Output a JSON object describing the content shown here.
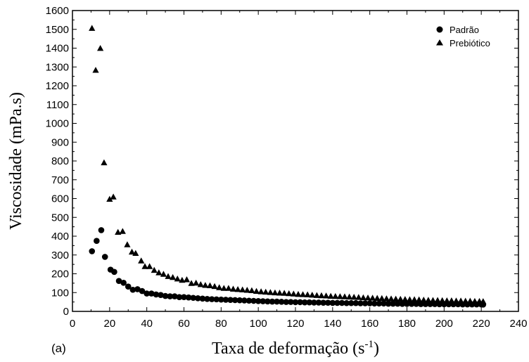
{
  "chart_data": {
    "type": "scatter",
    "panel_label": "(a)",
    "xlabel_main": "Taxa de deformação (s",
    "xlabel_sup": "-1",
    "xlabel_end": ")",
    "ylabel": "Viscosidade (mPa.s)",
    "xlim": [
      0,
      240
    ],
    "ylim": [
      0,
      1600
    ],
    "xticks": [
      "0",
      "20",
      "40",
      "60",
      "80",
      "100",
      "120",
      "140",
      "160",
      "180",
      "200",
      "220",
      "240"
    ],
    "yticks": [
      "0",
      "100",
      "200",
      "300",
      "400",
      "500",
      "600",
      "700",
      "800",
      "900",
      "1000",
      "1100",
      "1200",
      "1300",
      "1400",
      "1500",
      "1600"
    ],
    "grid": false,
    "legend_position": "top-right",
    "series": [
      {
        "name": "Padrão",
        "marker": "circle",
        "color": "#000000",
        "points": [
          [
            10.5,
            320
          ],
          [
            13,
            375
          ],
          [
            15.5,
            432
          ],
          [
            17.5,
            290
          ],
          [
            20.5,
            222
          ],
          [
            22.5,
            210
          ],
          [
            25,
            162
          ],
          [
            27.5,
            152
          ],
          [
            30,
            132
          ],
          [
            32.5,
            115
          ],
          [
            35,
            118
          ],
          [
            37.5,
            108
          ],
          [
            40,
            95
          ],
          [
            42.5,
            95
          ],
          [
            45,
            90
          ],
          [
            47.5,
            87
          ],
          [
            50,
            82
          ],
          [
            52.5,
            80
          ],
          [
            55,
            80
          ],
          [
            57.5,
            76
          ],
          [
            60,
            76
          ],
          [
            62.5,
            74
          ],
          [
            65,
            72
          ],
          [
            67.5,
            70
          ],
          [
            70,
            68
          ],
          [
            72.5,
            66
          ],
          [
            75,
            65
          ],
          [
            77.5,
            64
          ],
          [
            80,
            63
          ],
          [
            82.5,
            62
          ],
          [
            85,
            61
          ],
          [
            87.5,
            60
          ],
          [
            90,
            59
          ],
          [
            92.5,
            58
          ],
          [
            95,
            57
          ],
          [
            97.5,
            56
          ],
          [
            100,
            55
          ],
          [
            102.5,
            54
          ],
          [
            105,
            53
          ],
          [
            107.5,
            52
          ],
          [
            110,
            52
          ],
          [
            112.5,
            51
          ],
          [
            115,
            50
          ],
          [
            117.5,
            50
          ],
          [
            120,
            49
          ],
          [
            122.5,
            49
          ],
          [
            125,
            48
          ],
          [
            127.5,
            48
          ],
          [
            130,
            47
          ],
          [
            132.5,
            47
          ],
          [
            135,
            46
          ],
          [
            137.5,
            46
          ],
          [
            140,
            45
          ],
          [
            142.5,
            45
          ],
          [
            145,
            45
          ],
          [
            147.5,
            44
          ],
          [
            150,
            44
          ],
          [
            152.5,
            44
          ],
          [
            155,
            43
          ],
          [
            157.5,
            43
          ],
          [
            160,
            43
          ],
          [
            162.5,
            42
          ],
          [
            165,
            42
          ],
          [
            167.5,
            42
          ],
          [
            170,
            41
          ],
          [
            172.5,
            41
          ],
          [
            175,
            41
          ],
          [
            177.5,
            40
          ],
          [
            180,
            40
          ],
          [
            182.5,
            40
          ],
          [
            185,
            40
          ],
          [
            187.5,
            39
          ],
          [
            190,
            39
          ],
          [
            192.5,
            39
          ],
          [
            195,
            39
          ],
          [
            197.5,
            38
          ],
          [
            200,
            38
          ],
          [
            202.5,
            38
          ],
          [
            205,
            38
          ],
          [
            207.5,
            38
          ],
          [
            210,
            37
          ],
          [
            212.5,
            37
          ],
          [
            215,
            37
          ],
          [
            217.5,
            37
          ],
          [
            220,
            37
          ],
          [
            221,
            36
          ]
        ]
      },
      {
        "name": "Prebiótico",
        "marker": "triangle",
        "color": "#000000",
        "points": [
          [
            10.5,
            1505
          ],
          [
            12.5,
            1282
          ],
          [
            15,
            1398
          ],
          [
            17,
            790
          ],
          [
            20,
            596
          ],
          [
            22,
            608
          ],
          [
            24.5,
            420
          ],
          [
            27,
            425
          ],
          [
            29.5,
            354
          ],
          [
            32,
            315
          ],
          [
            34,
            308
          ],
          [
            37,
            268
          ],
          [
            39,
            238
          ],
          [
            41.5,
            238
          ],
          [
            44,
            218
          ],
          [
            46.5,
            205
          ],
          [
            49,
            197
          ],
          [
            51.5,
            185
          ],
          [
            54,
            180
          ],
          [
            56.5,
            172
          ],
          [
            59,
            165
          ],
          [
            61.5,
            168
          ],
          [
            64,
            148
          ],
          [
            66.5,
            150
          ],
          [
            69,
            142
          ],
          [
            71.5,
            138
          ],
          [
            74,
            136
          ],
          [
            76.5,
            132
          ],
          [
            79,
            126
          ],
          [
            81.5,
            122
          ],
          [
            84,
            122
          ],
          [
            86.5,
            118
          ],
          [
            89,
            116
          ],
          [
            91.5,
            114
          ],
          [
            94,
            112
          ],
          [
            96.5,
            110
          ],
          [
            99,
            106
          ],
          [
            101.5,
            104
          ],
          [
            104,
            102
          ],
          [
            106.5,
            100
          ],
          [
            109,
            98
          ],
          [
            111.5,
            97
          ],
          [
            114,
            96
          ],
          [
            116.5,
            94
          ],
          [
            119,
            92
          ],
          [
            121.5,
            90
          ],
          [
            124,
            89
          ],
          [
            126.5,
            88
          ],
          [
            129,
            86
          ],
          [
            131.5,
            84
          ],
          [
            134,
            83
          ],
          [
            136.5,
            82
          ],
          [
            139,
            80
          ],
          [
            141.5,
            79
          ],
          [
            144,
            78
          ],
          [
            146.5,
            77
          ],
          [
            149,
            76
          ],
          [
            151.5,
            75
          ],
          [
            154,
            74
          ],
          [
            156.5,
            72
          ],
          [
            159,
            71
          ],
          [
            161.5,
            70
          ],
          [
            164,
            69
          ],
          [
            166.5,
            68
          ],
          [
            169,
            67
          ],
          [
            171.5,
            66
          ],
          [
            174,
            65
          ],
          [
            176.5,
            64
          ],
          [
            179,
            63
          ],
          [
            181.5,
            62
          ],
          [
            184,
            62
          ],
          [
            186.5,
            61
          ],
          [
            189,
            60
          ],
          [
            191.5,
            59
          ],
          [
            194,
            58
          ],
          [
            196.5,
            58
          ],
          [
            199,
            57
          ],
          [
            201.5,
            56
          ],
          [
            204,
            56
          ],
          [
            206.5,
            55
          ],
          [
            209,
            55
          ],
          [
            211.5,
            54
          ],
          [
            214,
            54
          ],
          [
            216.5,
            53
          ],
          [
            219,
            53
          ],
          [
            221,
            52
          ]
        ]
      }
    ]
  }
}
